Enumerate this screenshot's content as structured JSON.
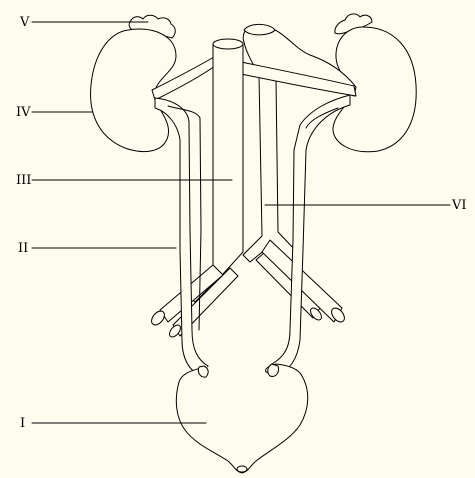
{
  "diagram": {
    "labels": {
      "I": "I",
      "II": "II",
      "III": "III",
      "IV": "IV",
      "V": "V",
      "VI": "VI"
    },
    "colors": {
      "background": "#fdfcee",
      "stroke": "#000000",
      "fill": "#fdfcee"
    }
  }
}
